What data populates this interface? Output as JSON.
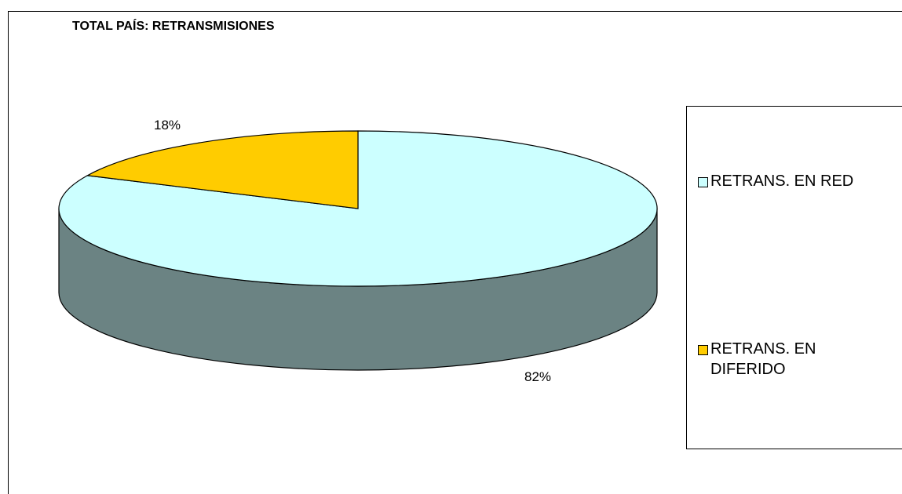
{
  "chart_data": {
    "type": "pie",
    "title": "TOTAL PAÍS: RETRANSMISIONES",
    "slices": [
      {
        "label": "RETRANS. EN RED",
        "value": 82,
        "display": "82%",
        "color": "#ccffff"
      },
      {
        "label": "RETRANS. EN DIFERIDO",
        "value": 18,
        "display": "18%",
        "color": "#ffcc00"
      }
    ],
    "side_color": "#6b8383",
    "legend_position": "right",
    "three_d": true
  }
}
